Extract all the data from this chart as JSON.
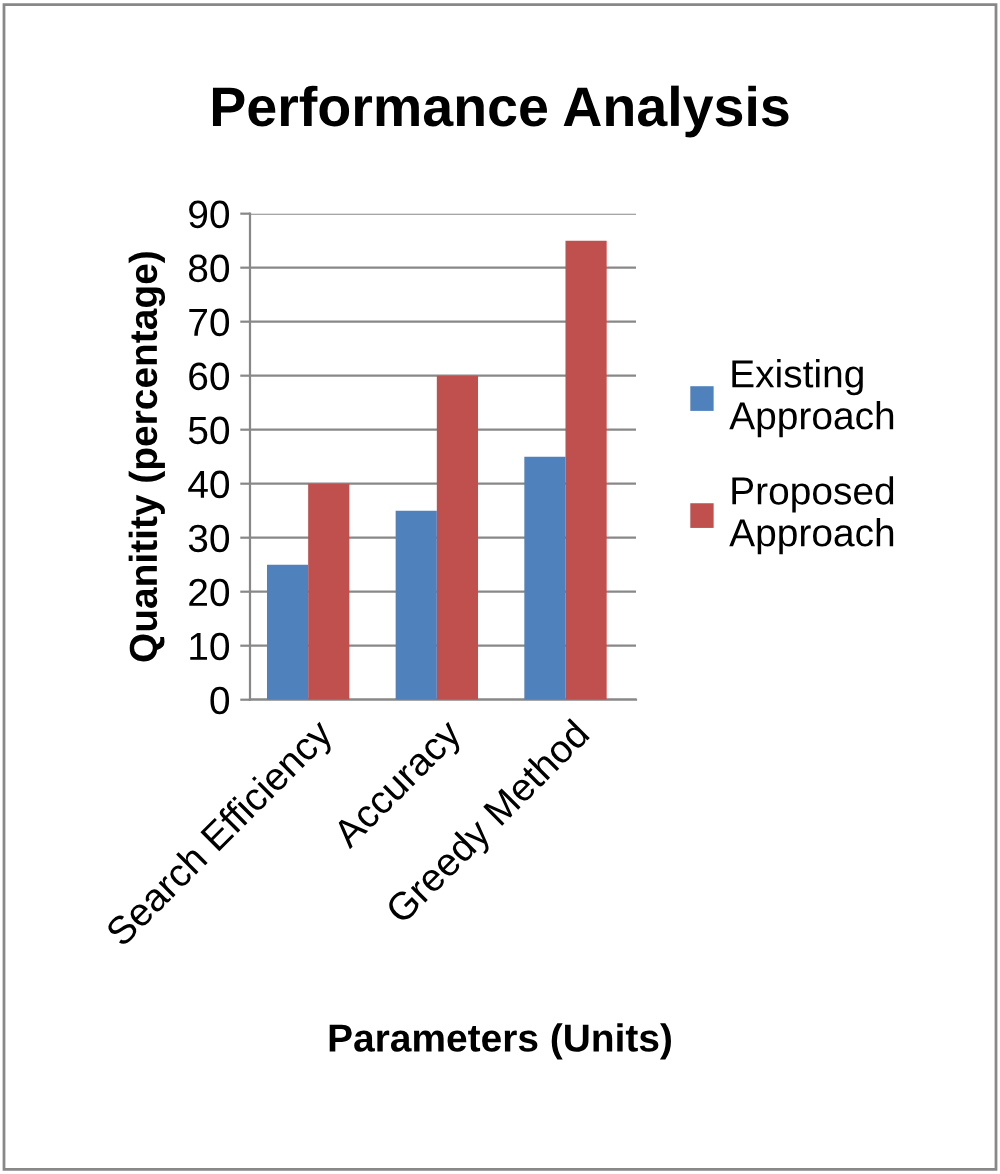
{
  "chart_data": {
    "type": "bar",
    "title": "Performance Analysis",
    "xlabel": "Parameters (Units)",
    "ylabel": "Quanitity (percentage)",
    "categories": [
      "Search Efficiency",
      "Accuracy",
      "Greedy Method"
    ],
    "series": [
      {
        "name": "Existing Approach",
        "color": "#4f81bd",
        "values": [
          25,
          35,
          45
        ]
      },
      {
        "name": "Proposed Approach",
        "color": "#c0504d",
        "values": [
          40,
          60,
          85
        ]
      }
    ],
    "ylim": [
      0,
      90
    ],
    "yticks": [
      0,
      10,
      20,
      30,
      40,
      50,
      60,
      70,
      80,
      90
    ],
    "grid": "y",
    "legend": "right"
  }
}
